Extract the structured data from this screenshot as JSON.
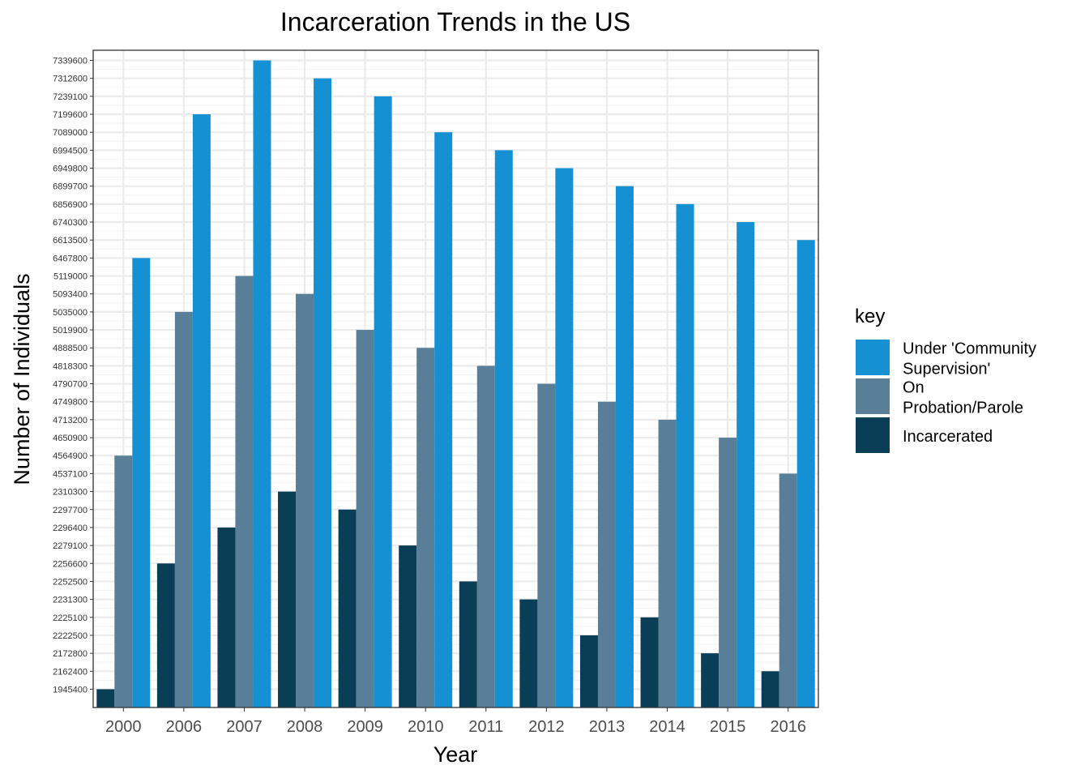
{
  "chart_data": {
    "type": "bar",
    "title": "Incarceration Trends in the US",
    "xlabel": "Year",
    "ylabel": "Number of Individuals",
    "y_scale": "categorical (each tick is a distinct value, evenly spaced)",
    "grid": true,
    "legend_placement": "right",
    "legend_title": "key",
    "categories": [
      "2000",
      "2006",
      "2007",
      "2008",
      "2009",
      "2010",
      "2011",
      "2012",
      "2013",
      "2014",
      "2015",
      "2016"
    ],
    "yticks": [
      "1945400",
      "2162400",
      "2172800",
      "2222500",
      "2225100",
      "2231300",
      "2252500",
      "2256600",
      "2279100",
      "2296400",
      "2297700",
      "2310300",
      "4537100",
      "4564900",
      "4650900",
      "4713200",
      "4749800",
      "4790700",
      "4818300",
      "4888500",
      "5019900",
      "5035000",
      "5093400",
      "5119000",
      "6467800",
      "6613500",
      "6740300",
      "6856900",
      "6899700",
      "6949800",
      "6994500",
      "7089000",
      "7199600",
      "7239100",
      "7312600",
      "7339600"
    ],
    "series": [
      {
        "name": "Incarcerated",
        "color": "#0a3d56",
        "values": [
          1945400,
          2256600,
          2296400,
          2310300,
          2297700,
          2279100,
          2252500,
          2231300,
          2222500,
          2225100,
          2172800,
          2162400
        ]
      },
      {
        "name": "On Probation/Parole",
        "color": "#587f97",
        "values": [
          4564900,
          5035000,
          5119000,
          5093400,
          5019900,
          4888500,
          4818300,
          4790700,
          4749800,
          4713200,
          4650900,
          4537100
        ]
      },
      {
        "name": "Under 'Community Supervision'",
        "color": "#1591d3",
        "values": [
          6467800,
          7199600,
          7339600,
          7312600,
          7239100,
          7089000,
          6994500,
          6949800,
          6899700,
          6856900,
          6740300,
          6613500
        ]
      }
    ],
    "legend": [
      {
        "lines": [
          "Under 'Community",
          "Supervision'"
        ],
        "color": "#1591d3"
      },
      {
        "lines": [
          "On",
          "Probation/Parole"
        ],
        "color": "#587f97"
      },
      {
        "lines": [
          "Incarcerated"
        ],
        "color": "#0a3d56"
      }
    ]
  }
}
